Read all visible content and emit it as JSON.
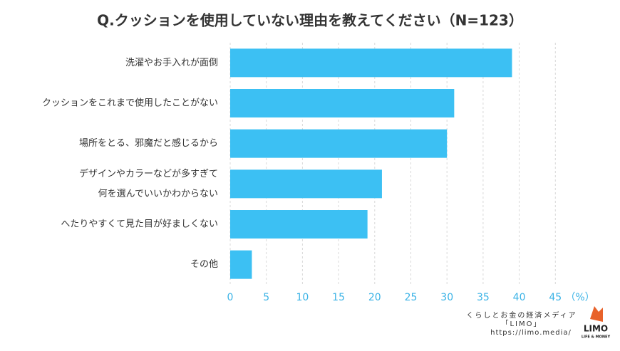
{
  "chart_data": {
    "type": "bar",
    "orientation": "horizontal",
    "title": "Q.クッションを使用していない理由を教えてください（N=123）",
    "categories": [
      [
        "洗濯やお手入れが面倒"
      ],
      [
        "クッションをこれまで使用したことがない"
      ],
      [
        "場所をとる、邪魔だと感じるから"
      ],
      [
        "デザインやカラーなどが多すぎて",
        "何を選んでいいかわからない"
      ],
      [
        "へたりやすくて見た目が好ましくない"
      ],
      [
        "その他"
      ]
    ],
    "values": [
      39,
      31,
      30,
      21,
      19,
      3
    ],
    "color": "#3cc0f3",
    "xlim": [
      0,
      50
    ],
    "xticks": [
      0,
      5,
      10,
      15,
      20,
      25,
      30,
      35,
      40,
      45
    ],
    "x_unit": "（%）",
    "grid": true
  },
  "branding": {
    "tagline": "くらしとお金の経済メディア",
    "name": "「LIMO」",
    "url": "https://limo.media/",
    "logo": "LIMO",
    "logo_sub": "LIFE & MONEY"
  }
}
